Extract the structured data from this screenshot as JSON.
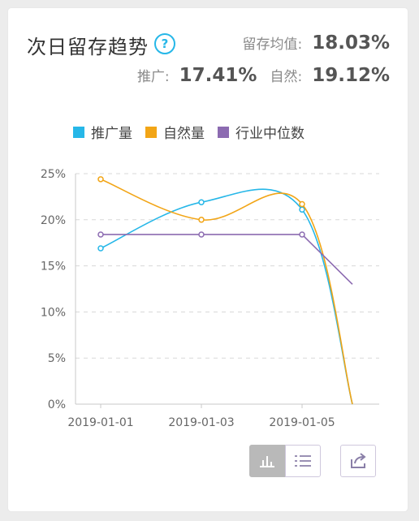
{
  "header": {
    "title": "次日留存趋势",
    "help_glyph": "?",
    "avg_label": "留存均值:",
    "avg_value": "18.03%",
    "promo_label": "推广:",
    "promo_value": "17.41%",
    "natural_label": "自然:",
    "natural_value": "19.12%"
  },
  "chart_data": {
    "type": "line",
    "x": [
      "2019-01-01",
      "2019-01-03",
      "2019-01-05",
      "2019-01-06"
    ],
    "x_tick_labels": [
      "2019-01-01",
      "2019-01-03",
      "2019-01-05"
    ],
    "y_tick_labels": [
      "0%",
      "5%",
      "10%",
      "15%",
      "20%",
      "25%"
    ],
    "ylim": [
      0,
      25
    ],
    "grid": true,
    "legend_position": "top",
    "series": [
      {
        "name": "推广量",
        "color": "#26b7e8",
        "values": [
          16.9,
          21.9,
          21.1,
          0
        ]
      },
      {
        "name": "自然量",
        "color": "#f2a516",
        "values": [
          24.4,
          20.0,
          21.7,
          0
        ]
      },
      {
        "name": "行业中位数",
        "color": "#8c6bb1",
        "values": [
          18.4,
          18.4,
          18.4,
          13.0
        ]
      }
    ]
  },
  "toolbar": {
    "chart_view_icon": "bar-chart-icon",
    "list_view_icon": "list-icon",
    "export_icon": "share-export-icon"
  }
}
